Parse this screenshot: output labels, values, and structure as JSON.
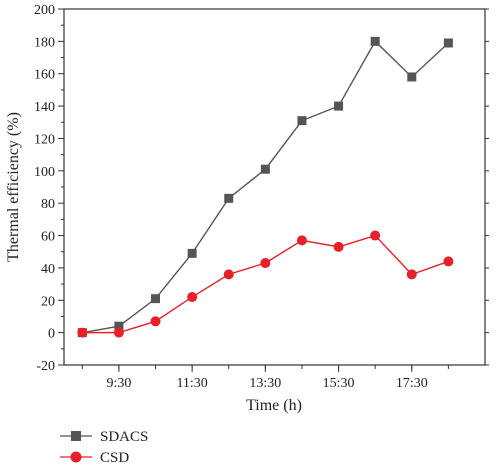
{
  "chart_data": {
    "type": "line",
    "xlabel": "Time (h)",
    "ylabel": "Thermal efficiency (%)",
    "ylim": [
      -20,
      200
    ],
    "yticks": [
      -20,
      0,
      20,
      40,
      60,
      80,
      100,
      120,
      140,
      160,
      180,
      200
    ],
    "x_tick_labels": [
      "9:30",
      "11:30",
      "13:30",
      "15:30",
      "17:30"
    ],
    "x_tick_hours": [
      9.5,
      11.5,
      13.5,
      15.5,
      17.5
    ],
    "xlim_hours": [
      8.0,
      19.5
    ],
    "x_hours": [
      8.5,
      9.5,
      10.5,
      11.5,
      12.5,
      13.5,
      14.5,
      15.5,
      16.5,
      17.5,
      18.5
    ],
    "grid": false,
    "legend_position": "bottom-left",
    "series": [
      {
        "name": "SDACS",
        "color": "#555555",
        "marker": "square",
        "values": [
          0,
          4,
          21,
          49,
          83,
          101,
          131,
          140,
          180,
          158,
          179
        ]
      },
      {
        "name": "CSD",
        "color": "#e8202a",
        "marker": "circle",
        "values": [
          0,
          0,
          7,
          22,
          36,
          43,
          57,
          53,
          60,
          36,
          44
        ]
      }
    ]
  }
}
